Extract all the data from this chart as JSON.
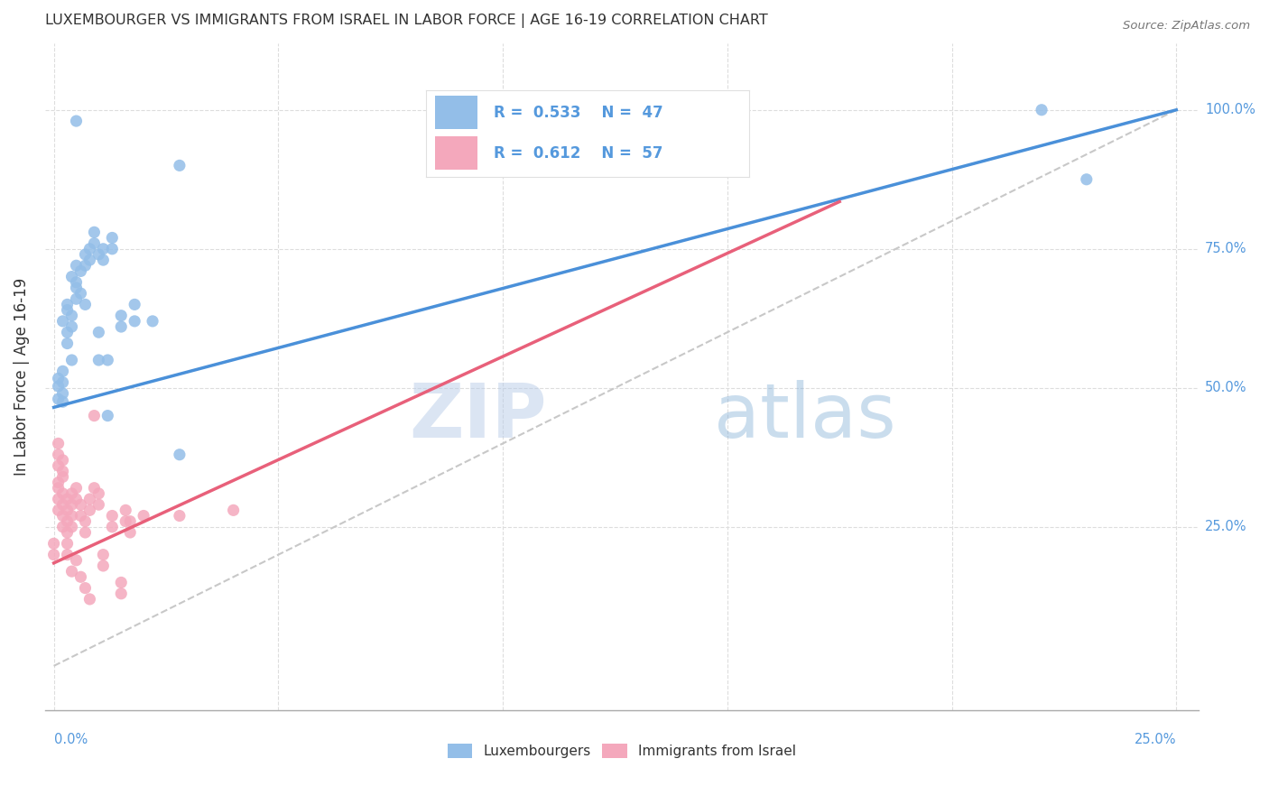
{
  "title": "LUXEMBOURGER VS IMMIGRANTS FROM ISRAEL IN LABOR FORCE | AGE 16-19 CORRELATION CHART",
  "source": "Source: ZipAtlas.com",
  "ylabel": "In Labor Force | Age 16-19",
  "legend_blue_r": "0.533",
  "legend_blue_n": "47",
  "legend_pink_r": "0.612",
  "legend_pink_n": "57",
  "legend_label_blue": "Luxembourgers",
  "legend_label_pink": "Immigrants from Israel",
  "watermark_zip": "ZIP",
  "watermark_atlas": "atlas",
  "blue_scatter_color": "#93BEE8",
  "pink_scatter_color": "#F4A8BC",
  "blue_line_color": "#4A90D9",
  "pink_line_color": "#E8607A",
  "title_color": "#333333",
  "axis_color": "#5599DD",
  "grid_color": "#DDDDDD",
  "blue_scatter": [
    [
      0.001,
      0.503
    ],
    [
      0.001,
      0.517
    ],
    [
      0.001,
      0.48
    ],
    [
      0.002,
      0.51
    ],
    [
      0.002,
      0.53
    ],
    [
      0.002,
      0.49
    ],
    [
      0.002,
      0.475
    ],
    [
      0.002,
      0.62
    ],
    [
      0.003,
      0.64
    ],
    [
      0.003,
      0.58
    ],
    [
      0.003,
      0.6
    ],
    [
      0.003,
      0.65
    ],
    [
      0.004,
      0.63
    ],
    [
      0.004,
      0.55
    ],
    [
      0.004,
      0.61
    ],
    [
      0.004,
      0.7
    ],
    [
      0.005,
      0.68
    ],
    [
      0.005,
      0.66
    ],
    [
      0.005,
      0.72
    ],
    [
      0.005,
      0.69
    ],
    [
      0.006,
      0.71
    ],
    [
      0.006,
      0.67
    ],
    [
      0.007,
      0.74
    ],
    [
      0.007,
      0.72
    ],
    [
      0.007,
      0.65
    ],
    [
      0.008,
      0.75
    ],
    [
      0.008,
      0.73
    ],
    [
      0.009,
      0.76
    ],
    [
      0.009,
      0.78
    ],
    [
      0.01,
      0.74
    ],
    [
      0.01,
      0.6
    ],
    [
      0.01,
      0.55
    ],
    [
      0.011,
      0.75
    ],
    [
      0.011,
      0.73
    ],
    [
      0.012,
      0.55
    ],
    [
      0.012,
      0.45
    ],
    [
      0.013,
      0.77
    ],
    [
      0.013,
      0.75
    ],
    [
      0.015,
      0.63
    ],
    [
      0.015,
      0.61
    ],
    [
      0.018,
      0.65
    ],
    [
      0.018,
      0.62
    ],
    [
      0.022,
      0.62
    ],
    [
      0.028,
      0.38
    ],
    [
      0.028,
      0.9
    ],
    [
      0.005,
      0.98
    ],
    [
      0.22,
      1.0
    ],
    [
      0.23,
      0.875
    ]
  ],
  "pink_scatter": [
    [
      0.0,
      0.22
    ],
    [
      0.001,
      0.3
    ],
    [
      0.001,
      0.32
    ],
    [
      0.001,
      0.28
    ],
    [
      0.001,
      0.33
    ],
    [
      0.001,
      0.38
    ],
    [
      0.001,
      0.36
    ],
    [
      0.001,
      0.4
    ],
    [
      0.002,
      0.29
    ],
    [
      0.002,
      0.31
    ],
    [
      0.002,
      0.27
    ],
    [
      0.002,
      0.25
    ],
    [
      0.002,
      0.34
    ],
    [
      0.002,
      0.35
    ],
    [
      0.002,
      0.37
    ],
    [
      0.003,
      0.28
    ],
    [
      0.003,
      0.26
    ],
    [
      0.003,
      0.24
    ],
    [
      0.003,
      0.3
    ],
    [
      0.003,
      0.22
    ],
    [
      0.003,
      0.2
    ],
    [
      0.004,
      0.27
    ],
    [
      0.004,
      0.25
    ],
    [
      0.004,
      0.29
    ],
    [
      0.004,
      0.31
    ],
    [
      0.004,
      0.17
    ],
    [
      0.005,
      0.3
    ],
    [
      0.005,
      0.32
    ],
    [
      0.005,
      0.19
    ],
    [
      0.006,
      0.29
    ],
    [
      0.006,
      0.27
    ],
    [
      0.006,
      0.16
    ],
    [
      0.007,
      0.26
    ],
    [
      0.007,
      0.24
    ],
    [
      0.007,
      0.14
    ],
    [
      0.008,
      0.28
    ],
    [
      0.008,
      0.3
    ],
    [
      0.008,
      0.12
    ],
    [
      0.009,
      0.32
    ],
    [
      0.009,
      0.45
    ],
    [
      0.01,
      0.31
    ],
    [
      0.01,
      0.29
    ],
    [
      0.011,
      0.2
    ],
    [
      0.011,
      0.18
    ],
    [
      0.013,
      0.27
    ],
    [
      0.013,
      0.25
    ],
    [
      0.015,
      0.15
    ],
    [
      0.015,
      0.13
    ],
    [
      0.016,
      0.28
    ],
    [
      0.017,
      0.26
    ],
    [
      0.017,
      0.24
    ],
    [
      0.02,
      0.27
    ],
    [
      0.028,
      0.27
    ],
    [
      0.04,
      0.28
    ],
    [
      0.0,
      0.2
    ],
    [
      0.016,
      0.26
    ]
  ],
  "blue_line": {
    "x0": 0.0,
    "y0": 0.465,
    "x1": 0.25,
    "y1": 1.0
  },
  "pink_line": {
    "x0": 0.0,
    "y0": 0.185,
    "x1": 0.175,
    "y1": 0.835
  },
  "xlim": [
    -0.002,
    0.255
  ],
  "ylim": [
    -0.08,
    1.12
  ],
  "ytick_positions": [
    0.25,
    0.5,
    0.75,
    1.0
  ],
  "ytick_labels": [
    "25.0%",
    "50.0%",
    "75.0%",
    "100.0%"
  ]
}
